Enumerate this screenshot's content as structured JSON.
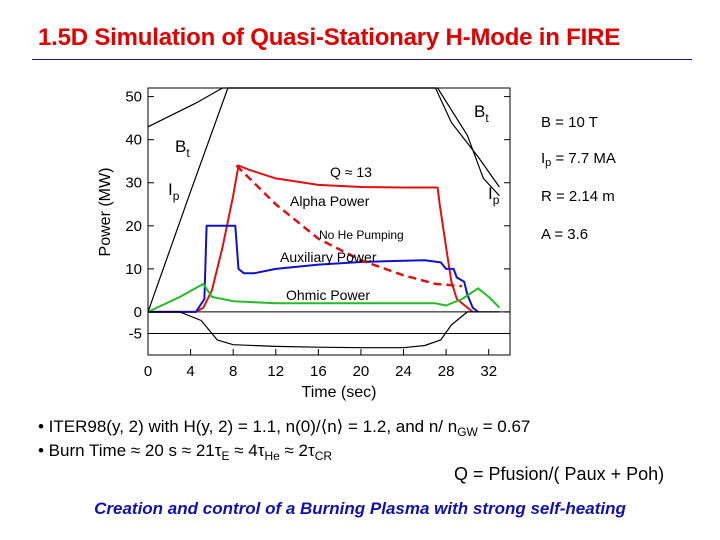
{
  "slide": {
    "title": "1.5D Simulation of Quasi-Stationary H-Mode in FIRE",
    "params": {
      "b_field": "B = 10 T",
      "ip_main": "I",
      "ip_sub": "p",
      "ip_rest": " = 7.7 MA",
      "radius": "R = 2.14 m",
      "aspect": "A = 3.6"
    },
    "bullet1": "• ITER98(y, 2) with H(y, 2) = 1.1, n(0)/⟨n⟩ = 1.2, and n/ n",
    "bullet1_sub": "GW",
    "bullet1_end": " = 0.67",
    "bullet2_parts": [
      "• Burn Time ≈ 20 s ≈ 21τ",
      "E",
      " ≈ 4τ",
      "He",
      " ≈ 2τ",
      "CR"
    ],
    "q_definition": "Q = Pfusion/( Paux + Poh)",
    "footer": "Creation and control of a Burning Plasma with strong self-heating"
  },
  "chart_data": {
    "type": "line",
    "title": "",
    "xlabel": "Time (sec)",
    "ylabel": "Power (MW)",
    "xlim": [
      0,
      34
    ],
    "ylim": [
      -10,
      52
    ],
    "x_ticks": [
      0,
      4,
      8,
      12,
      16,
      20,
      24,
      28,
      32
    ],
    "y_ticks": [
      50,
      40,
      30,
      20,
      10,
      0,
      -5
    ],
    "series": [
      {
        "name": "Alpha Power",
        "color": "#e01010",
        "x": [
          0,
          4.5,
          5.2,
          6,
          7,
          8,
          8.5,
          9.5,
          12,
          16,
          20,
          24,
          27.2,
          27.4,
          28,
          28.5,
          29,
          30,
          30.5
        ],
        "y": [
          0,
          0,
          1,
          5,
          15,
          27,
          34,
          33,
          31,
          29.5,
          29,
          28.9,
          28.9,
          25,
          15,
          7,
          3,
          1,
          0
        ]
      },
      {
        "name": "Auxiliary Power",
        "color": "#1010cc",
        "x": [
          0,
          4.5,
          5.3,
          5.5,
          7,
          8.2,
          8.5,
          9,
          10,
          12,
          16,
          20,
          24,
          26,
          27.5,
          28,
          28.7,
          29,
          29.7,
          30,
          30.5,
          31
        ],
        "y": [
          0,
          0,
          3,
          20,
          20,
          20,
          10,
          9,
          9,
          10,
          11,
          11.6,
          11.9,
          12,
          11.5,
          10,
          10,
          8,
          7,
          4,
          1,
          0
        ]
      },
      {
        "name": "Ohmic Power",
        "color": "#22bb22",
        "x": [
          0,
          3,
          5.2,
          6,
          8,
          12,
          16,
          20,
          24,
          27,
          28,
          29.5,
          31,
          32,
          33
        ],
        "y": [
          0,
          3.5,
          6.5,
          3.5,
          2.5,
          2,
          2,
          2,
          2,
          2,
          1.5,
          3,
          5.5,
          3.5,
          1
        ]
      },
      {
        "name": "Bt",
        "color": "#000000",
        "x": [
          0,
          4.5,
          7,
          27,
          28.5,
          31,
          33
        ],
        "y": [
          43,
          48.5,
          52,
          52,
          44,
          36,
          29
        ]
      },
      {
        "name": "Ip",
        "color": "#000000",
        "x": [
          0,
          4,
          7.5,
          27.2,
          30,
          31.5,
          33
        ],
        "y": [
          0,
          28,
          52,
          52,
          41,
          31,
          27
        ]
      },
      {
        "name": "Negative trace",
        "color": "#000000",
        "x": [
          0,
          3,
          5,
          6.5,
          8,
          12,
          16,
          20,
          24,
          26,
          27.5,
          28.5,
          30,
          33
        ],
        "y": [
          0,
          0,
          -2,
          -6.5,
          -7.6,
          -8,
          -8.2,
          -8.3,
          -8.3,
          -7.8,
          -6.5,
          -3,
          0,
          0
        ]
      }
    ],
    "fit_curve": {
      "name": "No He Pumping",
      "color": "#e01010",
      "x": [
        8.3,
        12,
        16,
        20,
        24,
        27,
        29.5
      ],
      "y": [
        34,
        25,
        17,
        12,
        8.5,
        6.5,
        6
      ]
    },
    "annotations": {
      "q_label": "Q ≈ 13",
      "alpha_label": "Alpha Power",
      "no_he_label": "No He Pumping",
      "aux_label": "Auxiliary Power",
      "ohmic_label": "Ohmic Power",
      "bt_label": "B",
      "bt_sub": "t",
      "ip_label": "I",
      "ip_sub": "p"
    },
    "grid": false,
    "reference_lines_y": [
      0,
      -5
    ]
  }
}
